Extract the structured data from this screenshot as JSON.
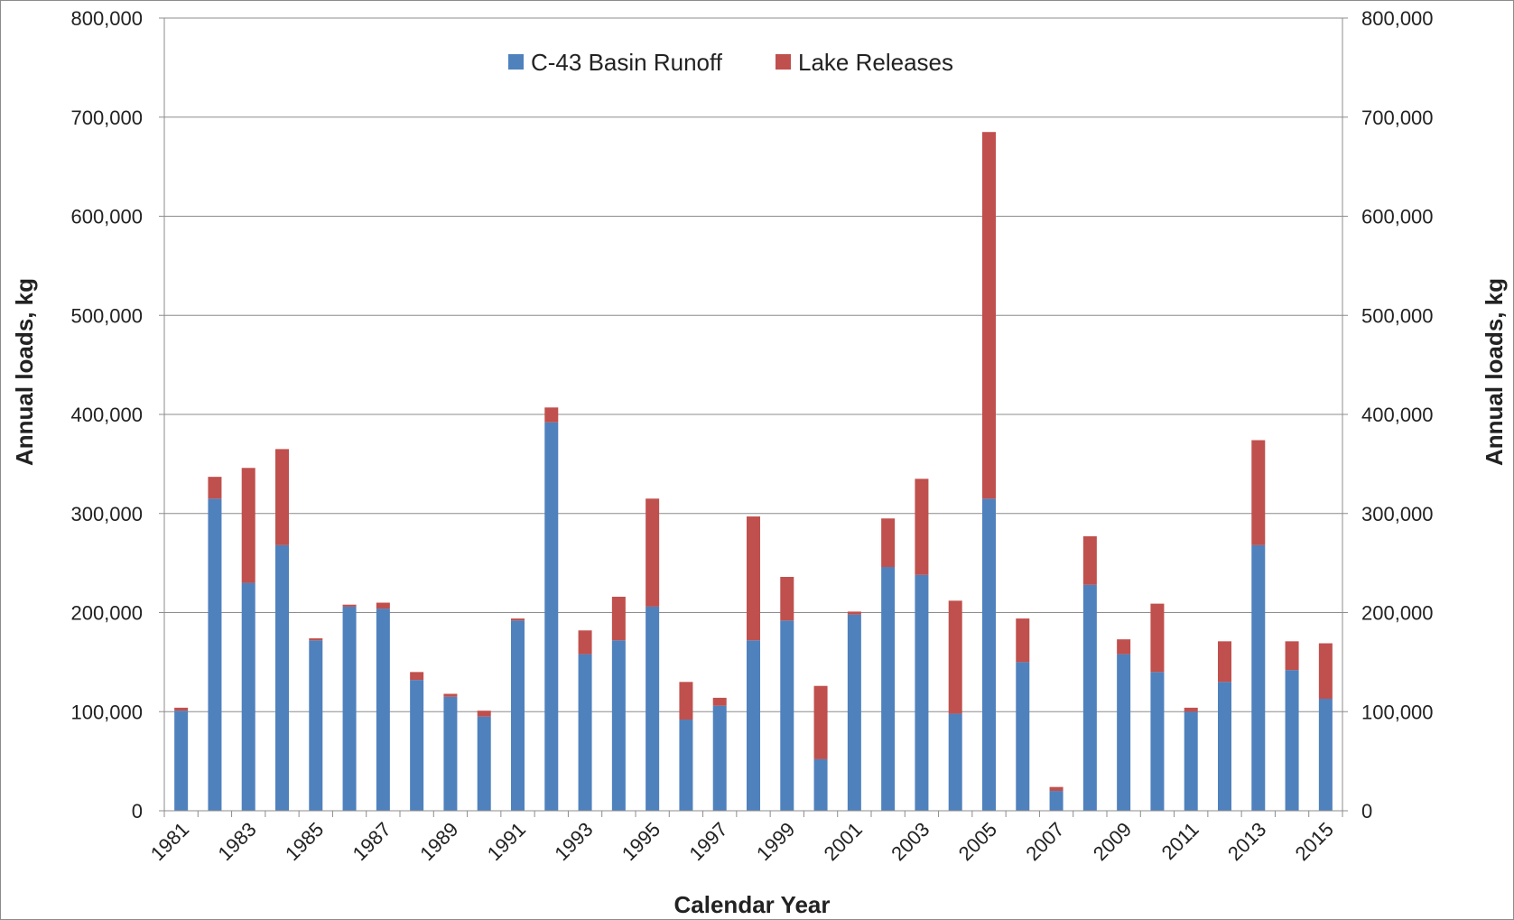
{
  "chart_data": {
    "type": "bar",
    "stacked": true,
    "xlabel": "Calendar Year",
    "ylabel": "Annual loads, kg",
    "ylabel_right": "Annual loads, kg",
    "ylim": [
      0,
      800000
    ],
    "y_ticks": [
      0,
      100000,
      200000,
      300000,
      400000,
      500000,
      600000,
      700000,
      800000
    ],
    "y_tick_labels": [
      "0",
      "100,000",
      "200,000",
      "300,000",
      "400,000",
      "500,000",
      "600,000",
      "700,000",
      "800,000"
    ],
    "grid": true,
    "legend_position": "top-center",
    "categories": [
      "1981",
      "1982",
      "1983",
      "1984",
      "1985",
      "1986",
      "1987",
      "1988",
      "1989",
      "1990",
      "1991",
      "1992",
      "1993",
      "1994",
      "1995",
      "1996",
      "1997",
      "1998",
      "1999",
      "2000",
      "2001",
      "2002",
      "2003",
      "2004",
      "2005",
      "2006",
      "2007",
      "2008",
      "2009",
      "2010",
      "2011",
      "2012",
      "2013",
      "2014",
      "2015"
    ],
    "x_tick_labels": [
      "1981",
      "",
      "1983",
      "",
      "1985",
      "",
      "1987",
      "",
      "1989",
      "",
      "1991",
      "",
      "1993",
      "",
      "1995",
      "",
      "1997",
      "",
      "1999",
      "",
      "2001",
      "",
      "2003",
      "",
      "2005",
      "",
      "2007",
      "",
      "2009",
      "",
      "2011",
      "",
      "2013",
      "",
      "2015"
    ],
    "series": [
      {
        "name": "C-43 Basin Runoff",
        "color": "#4f81bd",
        "values": [
          101000,
          315000,
          230000,
          268000,
          172000,
          206000,
          204000,
          132000,
          115000,
          95000,
          192000,
          392000,
          158000,
          172000,
          206000,
          92000,
          106000,
          172000,
          192000,
          52000,
          198000,
          246000,
          238000,
          98000,
          315000,
          150000,
          20000,
          228000,
          158000,
          140000,
          100000,
          130000,
          268000,
          142000,
          113000
        ]
      },
      {
        "name": "Lake Releases",
        "color": "#c0504d",
        "values": [
          3000,
          22000,
          116000,
          97000,
          2000,
          2000,
          6000,
          8000,
          3000,
          6000,
          2000,
          15000,
          24000,
          44000,
          109000,
          38000,
          8000,
          125000,
          44000,
          74000,
          3000,
          49000,
          97000,
          114000,
          370000,
          44000,
          4000,
          49000,
          15000,
          69000,
          4000,
          41000,
          106000,
          29000,
          56000
        ]
      }
    ]
  }
}
